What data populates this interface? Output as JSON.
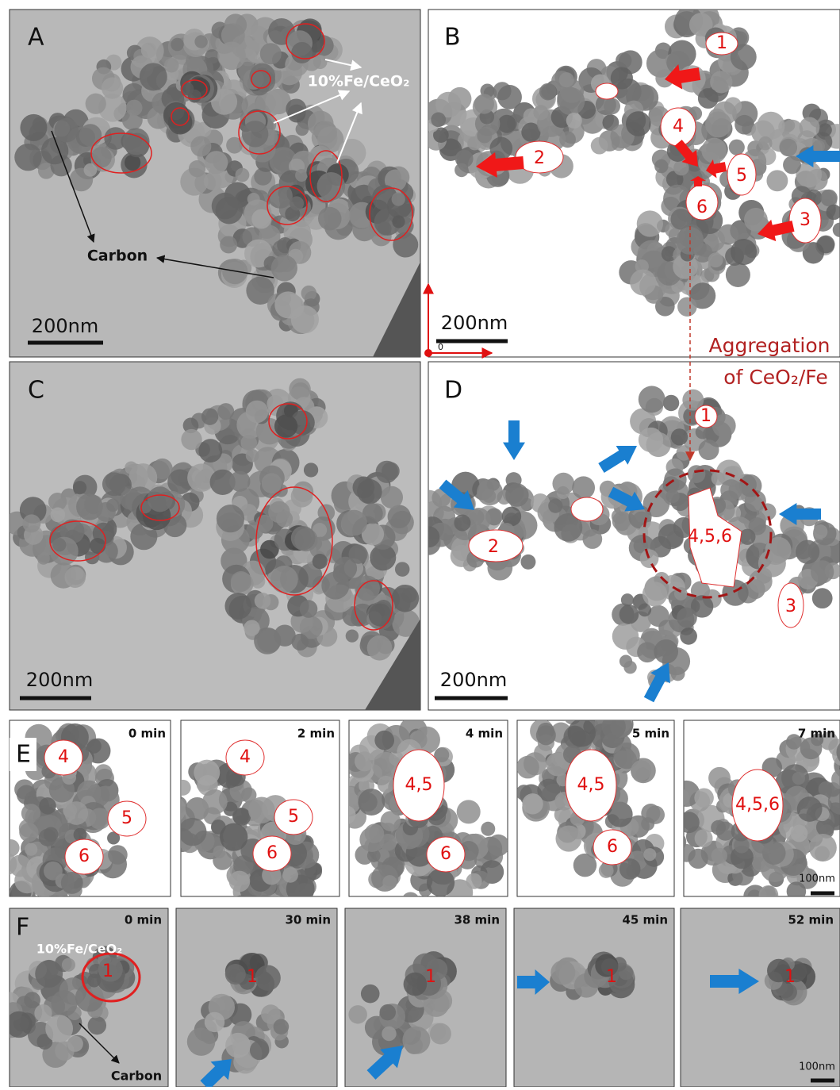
{
  "figure": {
    "A": {
      "letter": "A",
      "material": "10%Fe/CeO₂",
      "carbon": "Carbon",
      "scale": "200nm"
    },
    "B": {
      "letter": "B",
      "regions": [
        "1",
        "2",
        "3",
        "4",
        "5",
        "6"
      ],
      "scale": "200nm",
      "origin": "0"
    },
    "C": {
      "letter": "C",
      "scale": "200nm"
    },
    "D": {
      "letter": "D",
      "regions": [
        "1",
        "2",
        "3",
        "4,5,6"
      ],
      "scale": "200nm",
      "annotation": [
        "Aggregation",
        "of CeO₂/Fe"
      ]
    },
    "E": {
      "letter": "E",
      "scale": "100nm",
      "frames": [
        {
          "time": "0 min",
          "regions": [
            "4",
            "5",
            "6"
          ]
        },
        {
          "time": "2 min",
          "regions": [
            "4",
            "5",
            "6"
          ]
        },
        {
          "time": "4 min",
          "regions": [
            "4,5",
            "6"
          ]
        },
        {
          "time": "5 min",
          "regions": [
            "4,5",
            "6"
          ]
        },
        {
          "time": "7 min",
          "regions": [
            "4,5,6"
          ]
        }
      ]
    },
    "F": {
      "letter": "F",
      "material": "10%Fe/CeO₂",
      "carbon": "Carbon",
      "scale": "100nm",
      "frames": [
        {
          "time": "0 min",
          "region": "1"
        },
        {
          "time": "30 min",
          "region": "1"
        },
        {
          "time": "38 min",
          "region": "1"
        },
        {
          "time": "45 min",
          "region": "1"
        },
        {
          "time": "52 min",
          "region": "1"
        }
      ]
    }
  }
}
